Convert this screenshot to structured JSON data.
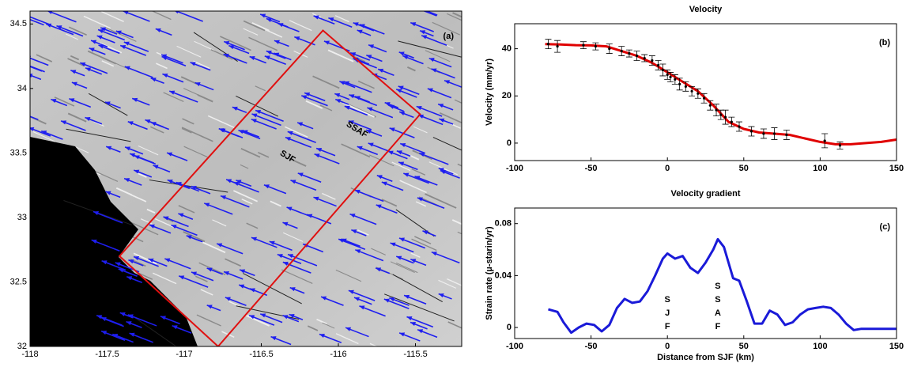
{
  "chart_data": [
    {
      "type": "map",
      "panel_label": "(a)",
      "xlim": [
        -118,
        -115.2
      ],
      "xticks": [
        -118,
        -117.5,
        -117,
        -116.5,
        -116,
        -115.5
      ],
      "ylim": [
        32,
        34.6
      ],
      "yticks": [
        32,
        32.5,
        33,
        33.5,
        34,
        34.5
      ],
      "box": {
        "color": "#e01010",
        "x": [
          -116.78,
          -117.42,
          -116.1,
          -115.47,
          -116.78
        ],
        "y": [
          32.0,
          32.7,
          34.45,
          33.8,
          32.0
        ]
      },
      "fault_labels": [
        {
          "text": "SSAF",
          "x": -115.88,
          "y": 33.68
        },
        {
          "text": "SJF",
          "x": -116.33,
          "y": 33.47
        }
      ]
    },
    {
      "type": "line",
      "title": "Velocity",
      "panel_label": "(b)",
      "ylabel": "Velocity (mm/yr)",
      "xlim": [
        -100,
        150
      ],
      "xticks": [
        -100,
        -50,
        0,
        50,
        100,
        150
      ],
      "ylim": [
        -7.4,
        50.6
      ],
      "yticks": [
        0,
        20,
        40
      ],
      "series": [
        {
          "color": "#e00000",
          "x": [
            -80,
            -70,
            -60,
            -50,
            -40,
            -30,
            -20,
            -10,
            0,
            10,
            20,
            30,
            40,
            50,
            60,
            70,
            80,
            90,
            100,
            110,
            120,
            130,
            140,
            150
          ],
          "values": [
            42,
            41.8,
            41.5,
            41.4,
            41,
            39,
            37,
            34,
            30,
            26,
            22,
            16,
            9,
            6,
            4.5,
            4,
            3.5,
            2,
            0.5,
            -0.5,
            -0.5,
            0,
            0.5,
            1.5
          ]
        },
        {
          "color": "#000000",
          "x": [
            -78,
            -72,
            -55,
            -47,
            -38,
            -30,
            -25,
            -20,
            -15,
            -10,
            -6,
            -3,
            0,
            2,
            5,
            8,
            12,
            16,
            20,
            24,
            28,
            32,
            35,
            38,
            42,
            47,
            55,
            63,
            70,
            78,
            103,
            113
          ],
          "values": [
            42,
            41,
            41.5,
            41,
            40,
            39,
            38,
            37,
            36,
            35,
            33,
            31,
            29,
            28,
            27,
            25,
            24,
            22,
            21,
            19,
            16,
            14,
            12,
            11,
            9,
            7,
            5,
            4,
            4,
            3.5,
            1,
            -1
          ],
          "errors": [
            2,
            2.5,
            1.5,
            1.5,
            2,
            2,
            1.5,
            2,
            1.5,
            2,
            2,
            2.5,
            2,
            2,
            2,
            2.5,
            2,
            2,
            2,
            2,
            2,
            2.5,
            2,
            3,
            2,
            2,
            2,
            2,
            2.5,
            2,
            3,
            1.5
          ]
        }
      ]
    },
    {
      "type": "line",
      "title": "Velocity gradient",
      "panel_label": "(c)",
      "ylabel": "Strain rate (µ-starin/yr)",
      "xlabel": "Distance from SJF (km)",
      "xlim": [
        -100,
        150
      ],
      "xticks": [
        -100,
        -50,
        0,
        50,
        100,
        150
      ],
      "ylim": [
        -0.0085,
        0.092
      ],
      "yticks": [
        0,
        0.04,
        0.08
      ],
      "fault_labels": [
        {
          "text": "SJF",
          "x": 0
        },
        {
          "text": "SSAF",
          "x": 33
        }
      ],
      "series": [
        {
          "color": "#1a1ad8",
          "x": [
            -78,
            -72,
            -68,
            -63,
            -58,
            -53,
            -48,
            -43,
            -38,
            -33,
            -28,
            -23,
            -18,
            -13,
            -8,
            -3,
            0,
            5,
            10,
            15,
            20,
            25,
            30,
            33,
            37,
            40,
            43,
            47,
            52,
            57,
            62,
            67,
            72,
            77,
            82,
            87,
            92,
            97,
            102,
            107,
            112,
            117,
            122,
            127,
            132,
            140,
            150
          ],
          "values": [
            0.014,
            0.012,
            0.004,
            -0.004,
            0.0,
            0.003,
            0.002,
            -0.003,
            0.002,
            0.015,
            0.022,
            0.019,
            0.02,
            0.028,
            0.04,
            0.053,
            0.057,
            0.053,
            0.055,
            0.046,
            0.042,
            0.05,
            0.06,
            0.068,
            0.062,
            0.05,
            0.038,
            0.036,
            0.02,
            0.003,
            0.003,
            0.013,
            0.01,
            0.002,
            0.004,
            0.01,
            0.014,
            0.015,
            0.016,
            0.015,
            0.01,
            0.003,
            -0.002,
            -0.001,
            -0.001,
            -0.001,
            -0.001
          ]
        }
      ]
    }
  ]
}
